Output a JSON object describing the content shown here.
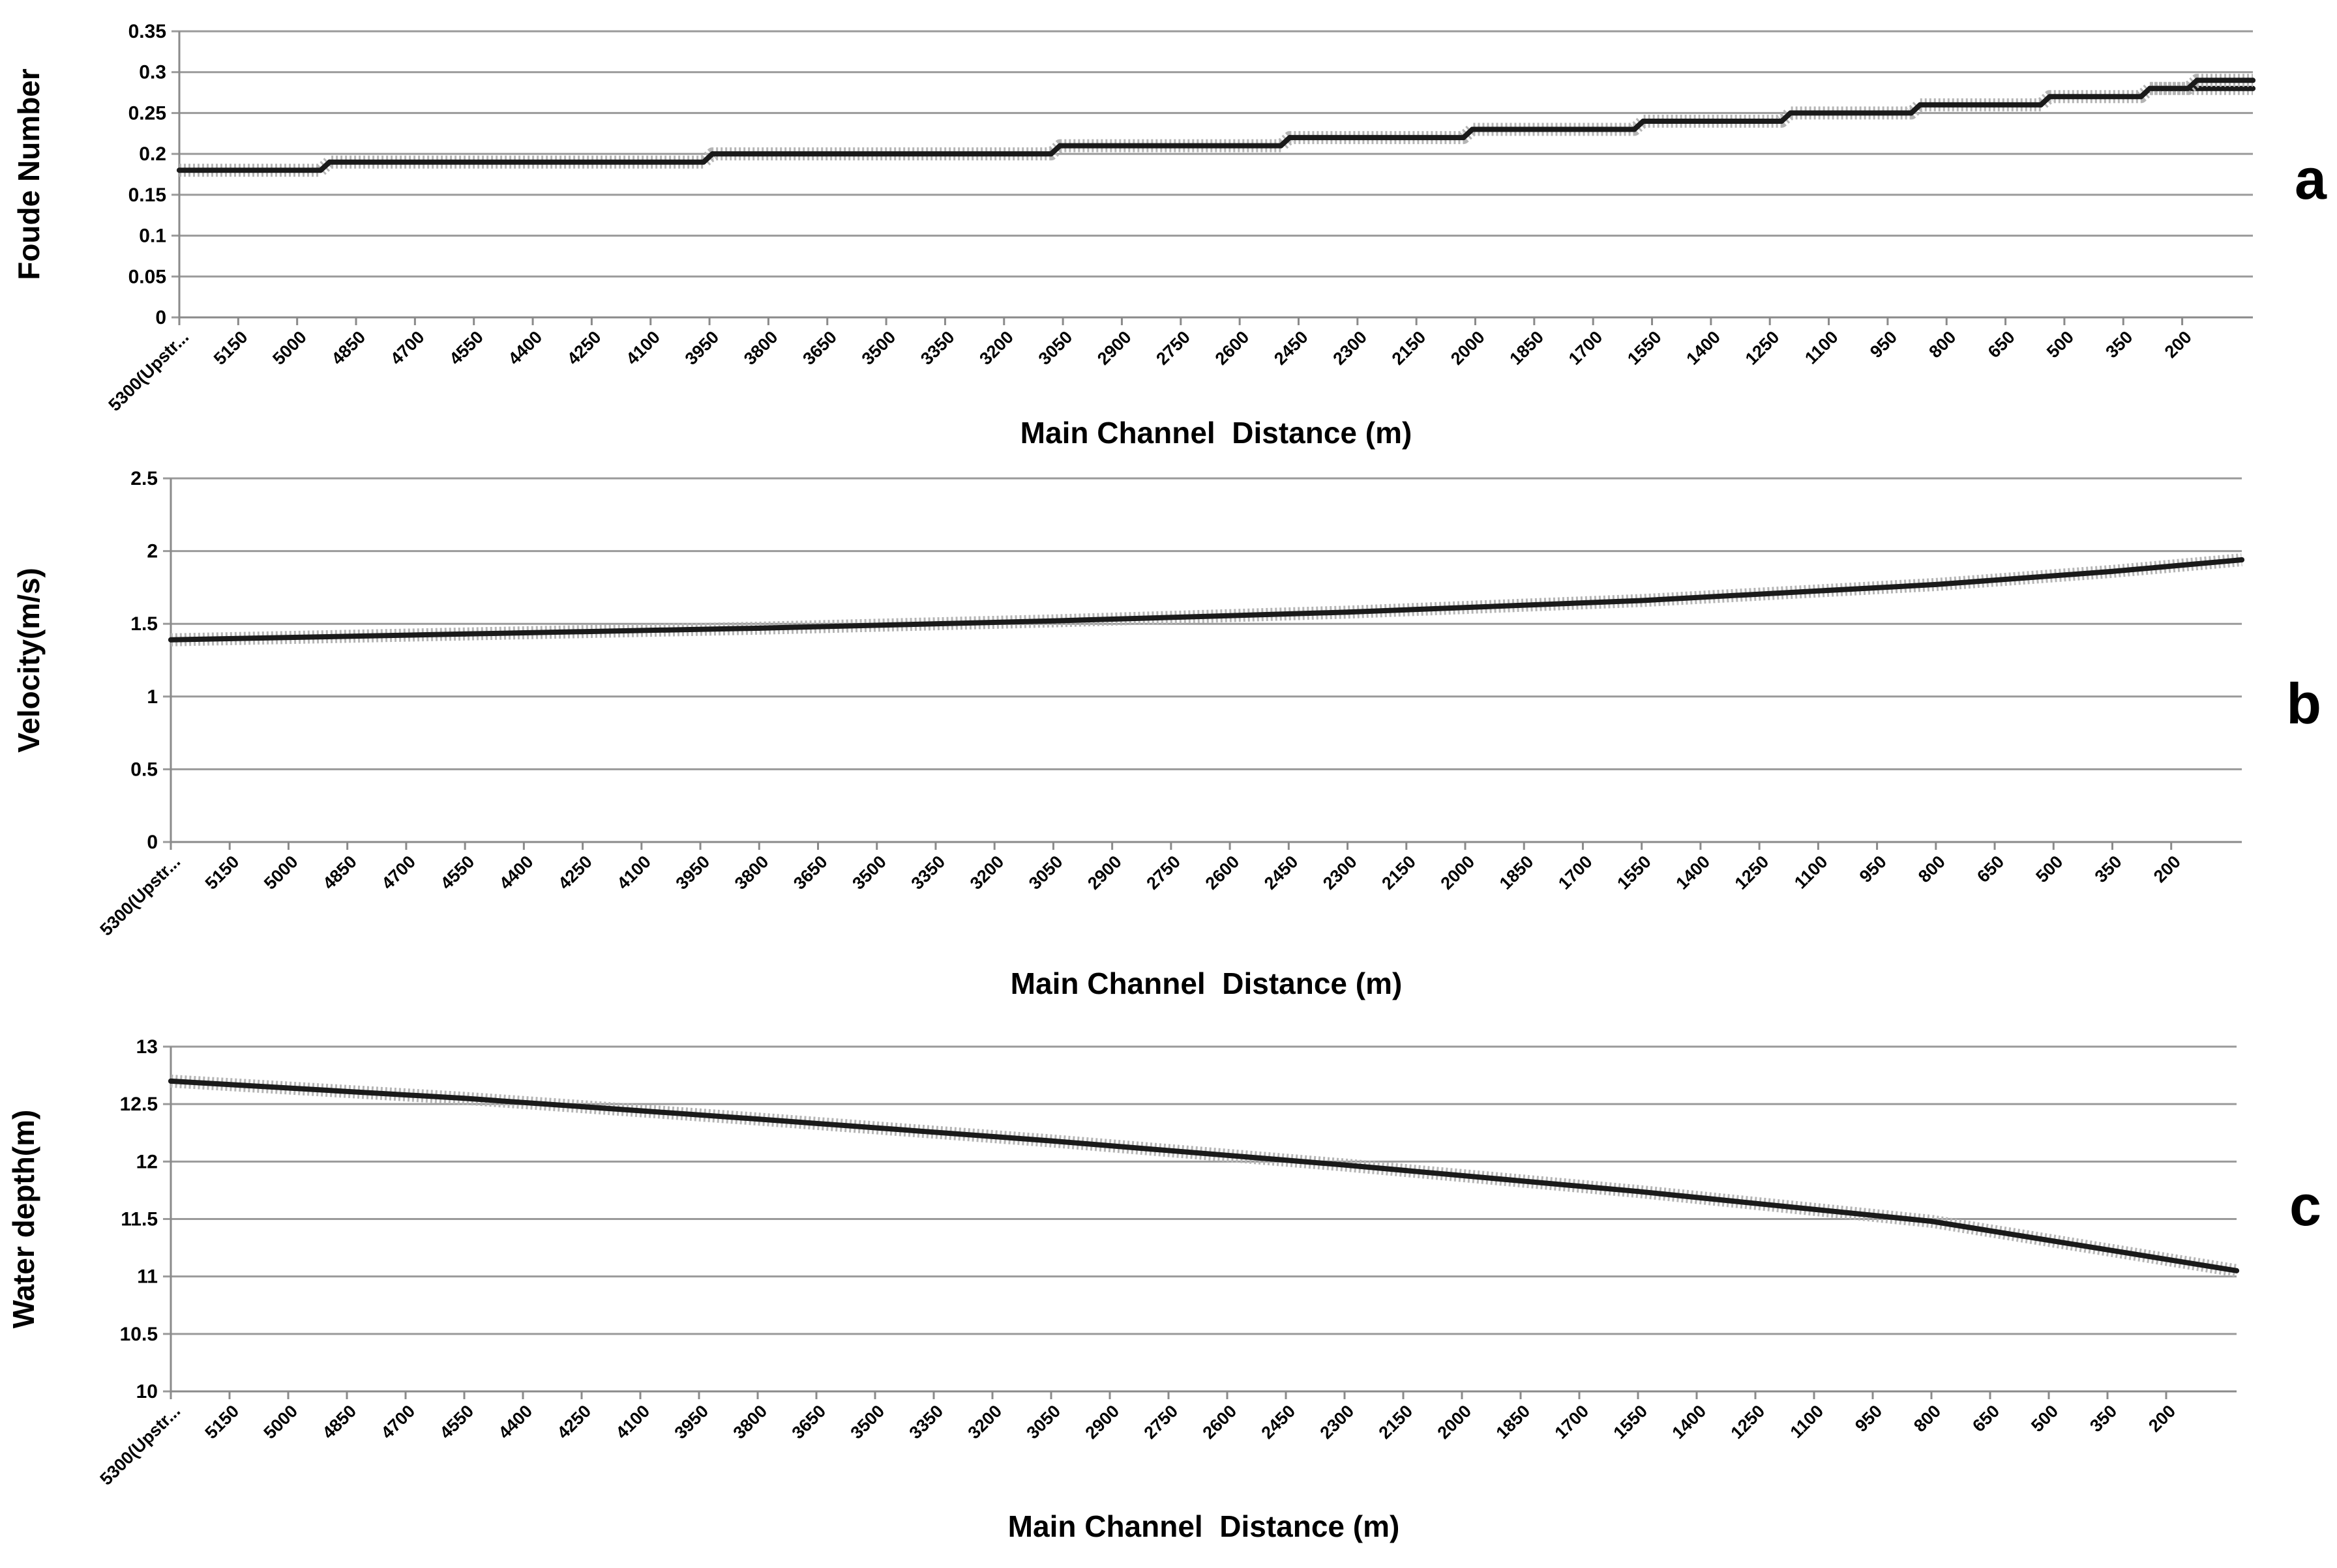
{
  "chart_data": [
    {
      "type": "line",
      "panel_label": "a",
      "ylabel": "Foude Number",
      "xlabel": "Main Channel  Distance (m)",
      "ylim": [
        0,
        0.35
      ],
      "yticks": [
        "0",
        "0.05",
        "0.1",
        "0.15",
        "0.2",
        "0.25",
        "0.3",
        "0.35"
      ],
      "grid": true,
      "categories": [
        "5300(Upstr...",
        "5150",
        "5000",
        "4850",
        "4700",
        "4550",
        "4400",
        "4250",
        "4100",
        "3950",
        "3800",
        "3650",
        "3500",
        "3350",
        "3200",
        "3050",
        "2900",
        "2750",
        "2600",
        "2450",
        "2300",
        "2150",
        "2000",
        "1850",
        "1700",
        "1550",
        "1400",
        "1250",
        "1100",
        "950",
        "800",
        "650",
        "500",
        "350",
        "200"
      ],
      "x_end": 35.2,
      "series": [
        {
          "x": [
            0,
            2.4,
            2.55,
            8.9,
            9.05,
            14.8,
            14.95,
            18.7,
            18.85,
            21.8,
            21.95,
            24.7,
            24.85,
            27.2,
            27.35,
            29.4,
            29.55,
            31.6,
            31.75,
            33.3,
            33.45,
            35.2
          ],
          "values": [
            0.18,
            0.18,
            0.19,
            0.19,
            0.2,
            0.2,
            0.21,
            0.21,
            0.22,
            0.22,
            0.23,
            0.23,
            0.24,
            0.24,
            0.25,
            0.25,
            0.26,
            0.26,
            0.27,
            0.27,
            0.28,
            0.28
          ]
        },
        {
          "x": [
            33.45,
            34.1,
            34.25,
            35.2
          ],
          "values": [
            0.28,
            0.28,
            0.29,
            0.29
          ]
        }
      ]
    },
    {
      "type": "line",
      "panel_label": "b",
      "ylabel": "Velocity(m/s)",
      "xlabel": "Main Channel  Distance (m)",
      "ylim": [
        0,
        2.5
      ],
      "yticks": [
        "0",
        "0.5",
        "1",
        "1.5",
        "2",
        "2.5"
      ],
      "grid": true,
      "categories": [
        "5300(Upstr...",
        "5150",
        "5000",
        "4850",
        "4700",
        "4550",
        "4400",
        "4250",
        "4100",
        "3950",
        "3800",
        "3650",
        "3500",
        "3350",
        "3200",
        "3050",
        "2900",
        "2750",
        "2600",
        "2450",
        "2300",
        "2150",
        "2000",
        "1850",
        "1700",
        "1550",
        "1400",
        "1250",
        "1100",
        "950",
        "800",
        "650",
        "500",
        "350",
        "200"
      ],
      "x_end": 35.2,
      "series": [
        {
          "x": [
            0,
            5,
            10,
            15,
            20,
            25,
            30,
            33,
            35.2
          ],
          "values": [
            1.39,
            1.43,
            1.47,
            1.52,
            1.58,
            1.66,
            1.77,
            1.86,
            1.94
          ]
        }
      ]
    },
    {
      "type": "line",
      "panel_label": "c",
      "ylabel": "Water depth(m)",
      "xlabel": "Main Channel  Distance (m)",
      "ylim": [
        10,
        13
      ],
      "yticks": [
        "10",
        "10.5",
        "11",
        "11.5",
        "12",
        "12.5",
        "13"
      ],
      "grid": true,
      "categories": [
        "5300(Upstr...",
        "5150",
        "5000",
        "4850",
        "4700",
        "4550",
        "4400",
        "4250",
        "4100",
        "3950",
        "3800",
        "3650",
        "3500",
        "3350",
        "3200",
        "3050",
        "2900",
        "2750",
        "2600",
        "2450",
        "2300",
        "2150",
        "2000",
        "1850",
        "1700",
        "1550",
        "1400",
        "1250",
        "1100",
        "950",
        "800",
        "650",
        "500",
        "350",
        "200"
      ],
      "x_end": 35.2,
      "series": [
        {
          "x": [
            0,
            5,
            10,
            15,
            20,
            25,
            30,
            35.2
          ],
          "values": [
            12.7,
            12.55,
            12.37,
            12.18,
            11.97,
            11.74,
            11.48,
            11.05
          ]
        }
      ]
    }
  ]
}
